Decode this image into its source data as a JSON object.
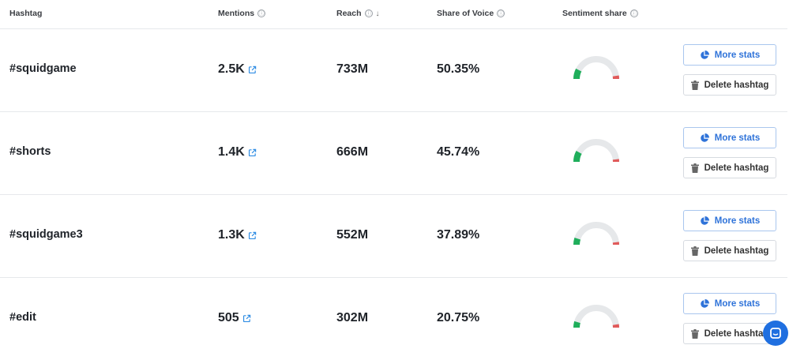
{
  "header": {
    "hashtag": "Hashtag",
    "mentions": "Mentions",
    "reach": "Reach",
    "share_of_voice": "Share of Voice",
    "sentiment_share": "Sentiment share",
    "info_icon": "ⓘ",
    "sort_icon": "↓"
  },
  "buttons": {
    "more_stats": "More stats",
    "delete_hashtag": "Delete hashtag"
  },
  "colors": {
    "accent": "#2f73d9",
    "positive": "#1fae5b",
    "neutral": "#e6e8ea",
    "negative": "#e05a5a"
  },
  "rows": [
    {
      "hashtag": "#squidgame",
      "mentions": "2.5K",
      "reach": "733M",
      "share_of_voice": "50.35%",
      "sentiment": {
        "positive": 0.15,
        "negative": 0.05
      }
    },
    {
      "hashtag": "#shorts",
      "mentions": "1.4K",
      "reach": "666M",
      "share_of_voice": "45.74%",
      "sentiment": {
        "positive": 0.16,
        "negative": 0.04
      }
    },
    {
      "hashtag": "#squidgame3",
      "mentions": "1.3K",
      "reach": "552M",
      "share_of_voice": "37.89%",
      "sentiment": {
        "positive": 0.1,
        "negative": 0.04
      }
    },
    {
      "hashtag": "#edit",
      "mentions": "505",
      "reach": "302M",
      "share_of_voice": "20.75%",
      "sentiment": {
        "positive": 0.09,
        "negative": 0.05
      }
    }
  ]
}
